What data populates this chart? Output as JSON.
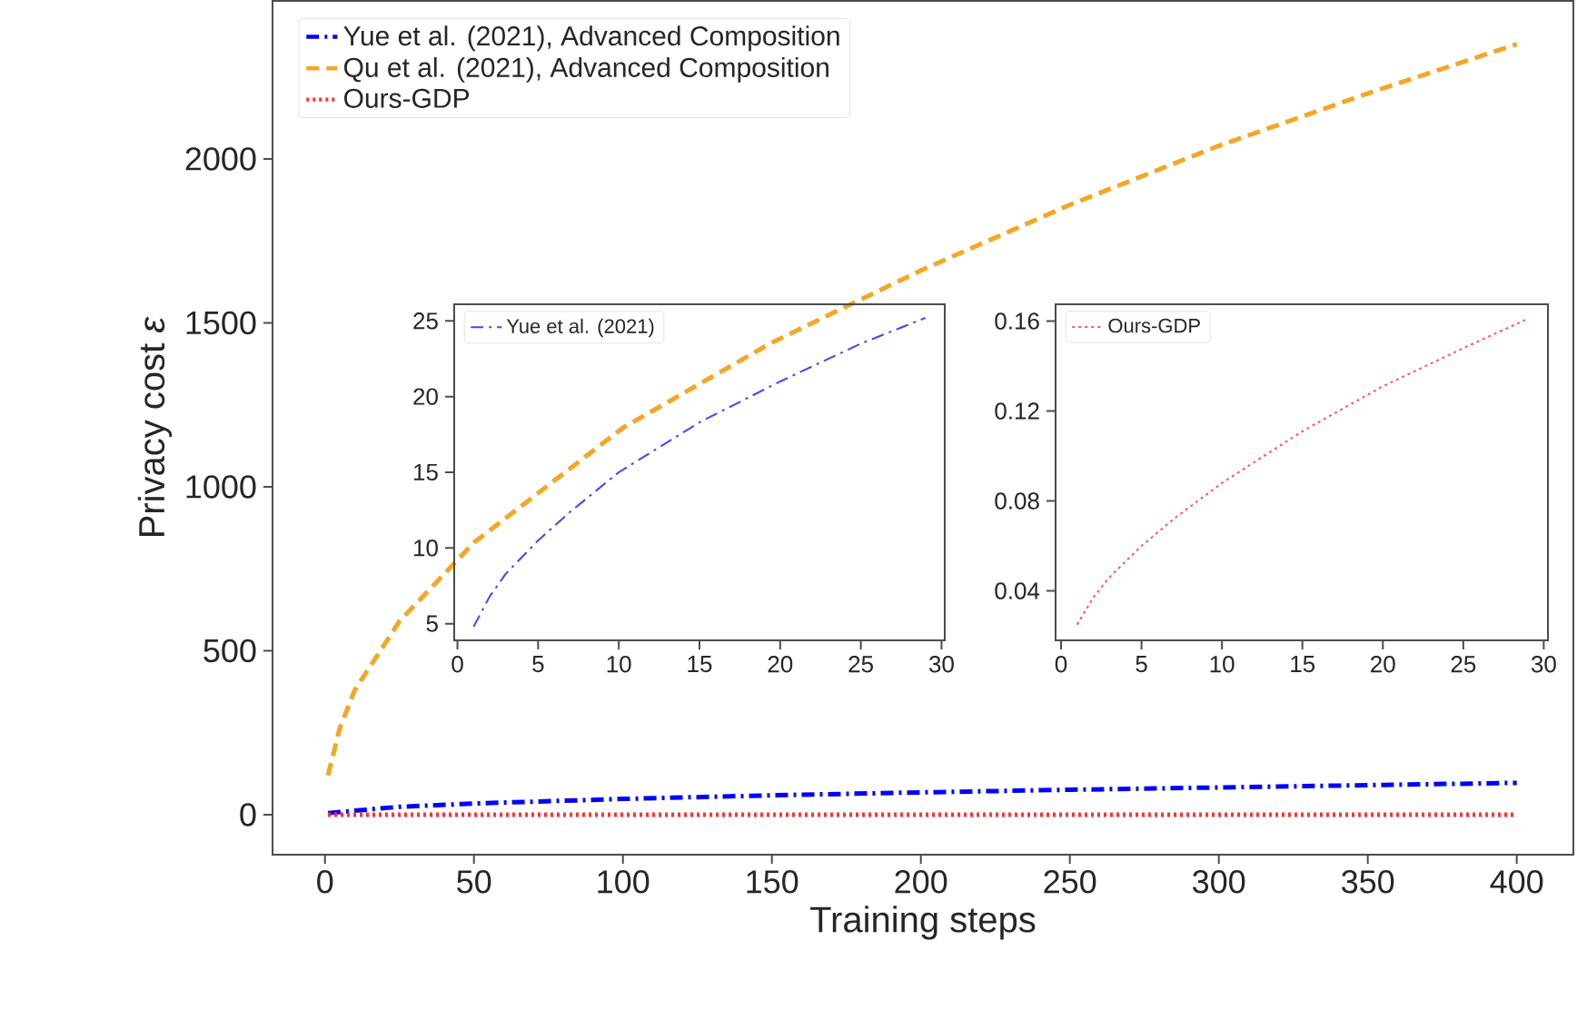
{
  "chart_data": [
    {
      "type": "line",
      "xlabel": "Training steps",
      "ylabel": "Privacy cost *ε*",
      "xlim": [
        -17.6,
        419
      ],
      "ylim": [
        -122,
        2482
      ],
      "xticks": [
        0,
        50,
        100,
        150,
        200,
        250,
        300,
        350,
        400
      ],
      "yticks": [
        0,
        500,
        1000,
        1500,
        2000
      ],
      "legend": "top left",
      "grid": false,
      "series": [
        {
          "name": "Yue et al. (2021), Advanced Composition",
          "color": "#0000ff",
          "line_style": "dashdot",
          "x": [
            1,
            25,
            50,
            100,
            150,
            200,
            250,
            300,
            350,
            400
          ],
          "values": [
            5,
            24,
            34,
            48,
            59,
            68,
            76,
            83,
            90,
            97
          ]
        },
        {
          "name": "Qu et al. (2021), Advanced Composition",
          "color": "#f5a623",
          "line_style": "dashed",
          "x": [
            1,
            5,
            10,
            25,
            50,
            100,
            150,
            200,
            250,
            300,
            350,
            400
          ],
          "values": [
            120,
            265,
            380,
            590,
            830,
            1180,
            1440,
            1660,
            1860,
            2040,
            2200,
            2350
          ]
        },
        {
          "name": "Ours-GDP",
          "color": "#ff3333",
          "line_style": "dotted",
          "x": [
            1,
            100,
            200,
            300,
            400
          ],
          "values": [
            0,
            0,
            0,
            0,
            0
          ]
        }
      ]
    },
    {
      "type": "line",
      "xlim": [
        -0.2,
        30.2
      ],
      "ylim": [
        3.9,
        26.1
      ],
      "xticks": [
        0,
        5,
        10,
        15,
        20,
        25,
        30
      ],
      "yticks": [
        5,
        10,
        15,
        20,
        25
      ],
      "legend": "top left",
      "grid": false,
      "series": [
        {
          "name": "Yue et al. (2021)",
          "color": "#4444ff",
          "line_style": "dashdot",
          "x": [
            1,
            2,
            3,
            5,
            7,
            10,
            15,
            20,
            25,
            29
          ],
          "values": [
            4.8,
            6.8,
            8.3,
            10.5,
            12.4,
            15,
            18.3,
            21,
            23.5,
            25.2
          ]
        }
      ]
    },
    {
      "type": "line",
      "xlim": [
        -0.34,
        30.26
      ],
      "ylim": [
        0.018,
        0.1675
      ],
      "xticks": [
        0,
        5,
        10,
        15,
        20,
        25,
        30
      ],
      "yticks": [
        {
          "value": 0.04,
          "label": "0.04"
        },
        {
          "value": 0.08,
          "label": "0.08"
        },
        {
          "value": 0.12,
          "label": "0.12"
        },
        {
          "value": 0.16,
          "label": "0.16"
        }
      ],
      "legend": "top left",
      "grid": false,
      "series": [
        {
          "name": "Ours-GDP",
          "color": "#ff5555",
          "line_style": "dotted",
          "x": [
            1,
            2,
            3,
            5,
            7,
            10,
            15,
            20,
            25,
            29
          ],
          "values": [
            0.025,
            0.037,
            0.046,
            0.06,
            0.072,
            0.088,
            0.111,
            0.131,
            0.148,
            0.161
          ]
        }
      ]
    }
  ]
}
